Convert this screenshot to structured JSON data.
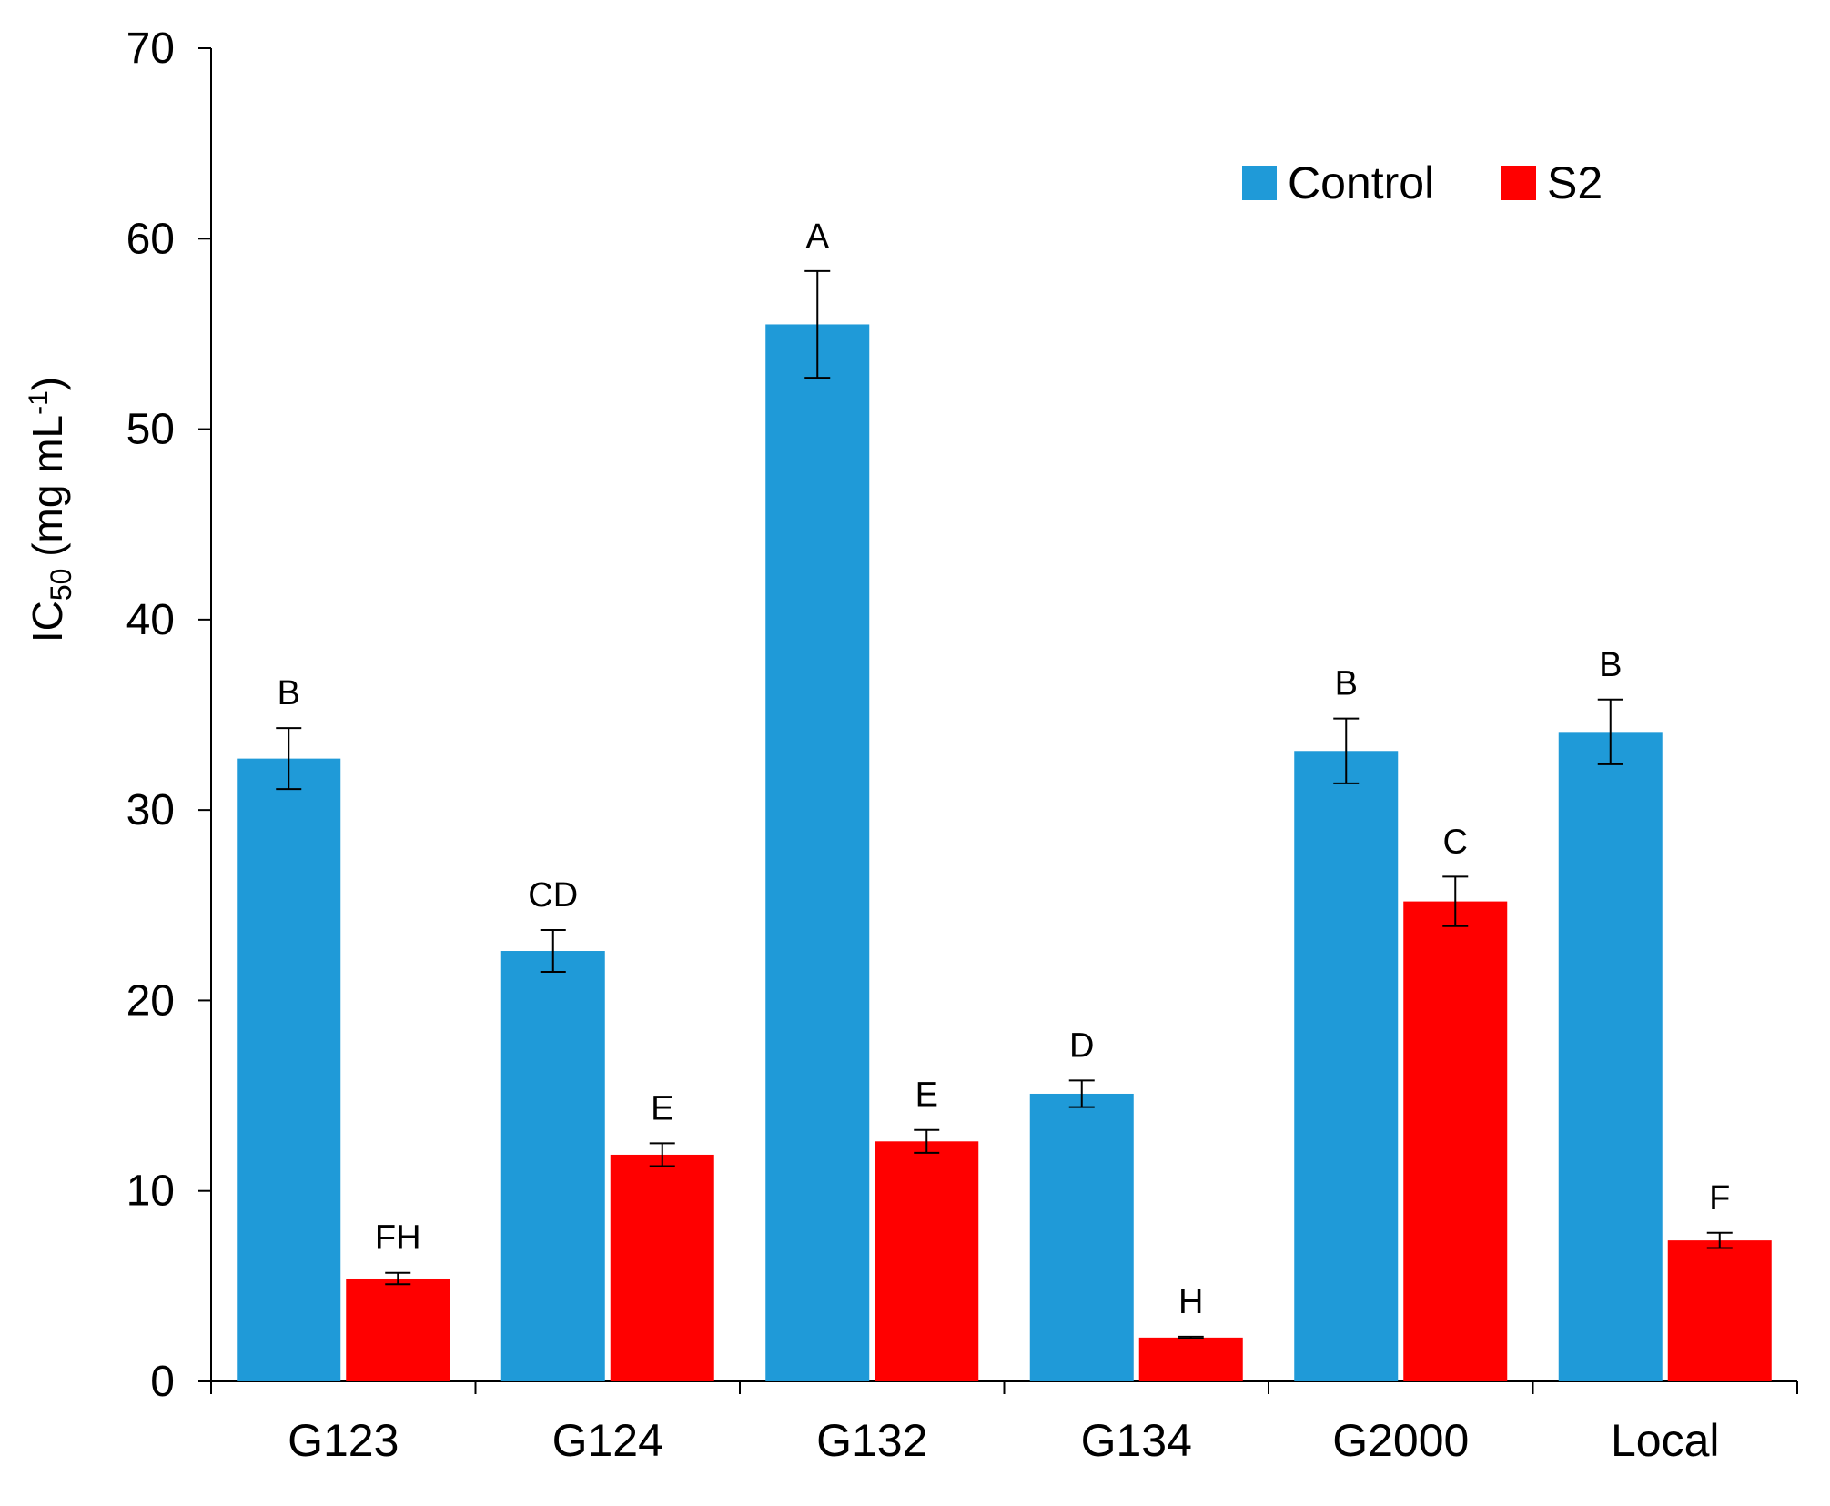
{
  "chart_data": {
    "type": "bar",
    "categories": [
      "G123",
      "G124",
      "G132",
      "G134",
      "G2000",
      "Local"
    ],
    "series": [
      {
        "name": "Control",
        "color": "#1f9ad8",
        "values": [
          32.7,
          22.6,
          55.5,
          15.1,
          33.1,
          34.1
        ],
        "errors": [
          1.6,
          1.1,
          2.8,
          0.7,
          1.7,
          1.7
        ],
        "letters": [
          "B",
          "CD",
          "A",
          "D",
          "B",
          "B"
        ]
      },
      {
        "name": "S2",
        "color": "#ff0000",
        "values": [
          5.4,
          11.9,
          12.6,
          2.3,
          25.2,
          7.4
        ],
        "errors": [
          0.3,
          0.6,
          0.6,
          0.05,
          1.3,
          0.4
        ],
        "letters": [
          "FH",
          "E",
          "E",
          "H",
          "C",
          "F"
        ]
      }
    ],
    "title": "",
    "xlabel": "",
    "ylabel": {
      "main": "IC",
      "sub": "50",
      "unit_prefix": " (mg mL",
      "sup": "-1",
      "unit_suffix": ")"
    },
    "ylim": [
      0,
      70
    ],
    "yticks": [
      0,
      10,
      20,
      30,
      40,
      50,
      60,
      70
    ],
    "legend_position": "top-right",
    "grid": false
  }
}
